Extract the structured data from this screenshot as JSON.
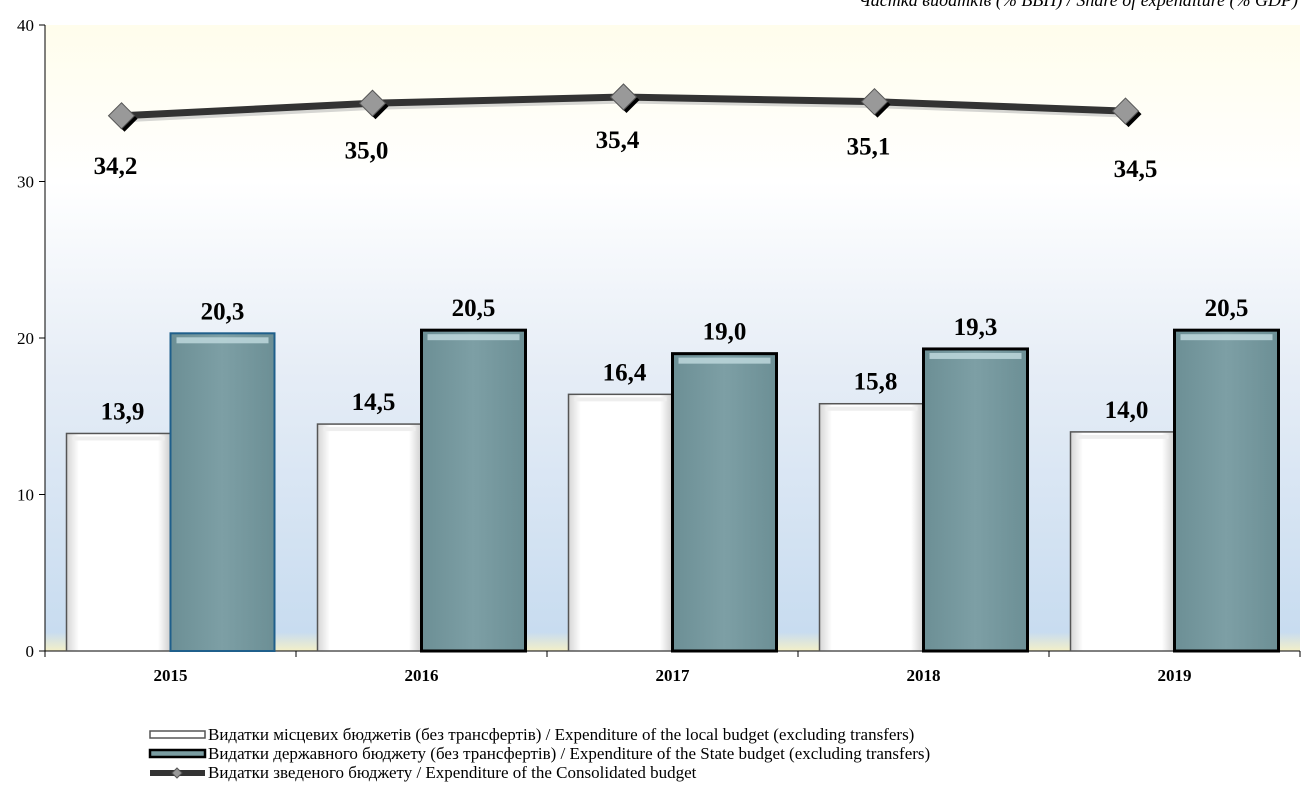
{
  "chart_data": {
    "type": "bar",
    "top_text": "Частка видатків (% ВВП) / Share of expenditure (% GDP)",
    "categories": [
      "2015",
      "2016",
      "2017",
      "2018",
      "2019"
    ],
    "ylim": [
      0,
      40
    ],
    "yticks": [
      "0",
      "10",
      "20",
      "30",
      "40"
    ],
    "grid": false,
    "legend_position": "bottom-left",
    "series": [
      {
        "name": "Видатки  місцевих бюджетів (без трансфертів) / Expenditure of the local budget (excluding transfers)",
        "kind": "bar",
        "values": [
          13.9,
          14.5,
          16.4,
          15.8,
          14.0
        ],
        "labels": [
          "13,9",
          "14,5",
          "16,4",
          "15,8",
          "14,0"
        ],
        "color": "#ffffff"
      },
      {
        "name": "Видатки державного бюджету (без трансфертів) / Expenditure of the State budget (excluding transfers)",
        "kind": "bar",
        "values": [
          20.3,
          20.5,
          19.0,
          19.3,
          20.5
        ],
        "labels": [
          "20,3",
          "20,5",
          "19,0",
          "19,3",
          "20,5"
        ],
        "color": "#7a9da2"
      },
      {
        "name": "Видатки зведеного бюджету /  Expenditure of the Consolidated budget",
        "kind": "line",
        "values": [
          34.2,
          35.0,
          35.4,
          35.1,
          34.5
        ],
        "labels": [
          "34,2",
          "35,0",
          "35,4",
          "35,1",
          "34,5"
        ],
        "color": "#333333"
      }
    ]
  }
}
